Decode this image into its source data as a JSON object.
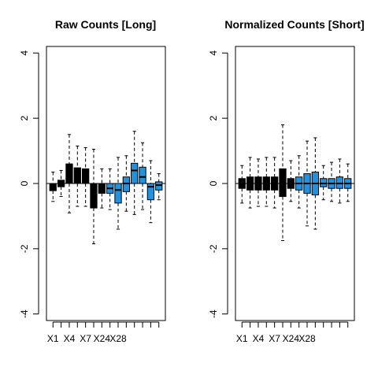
{
  "chart_data": [
    {
      "type": "box",
      "title": "Raw Counts [Long]",
      "ylim": [
        -4.2,
        4.2
      ],
      "y_ticks": [
        -4,
        -2,
        0,
        2,
        4
      ],
      "y_tick_labels": [
        "-4",
        "-2",
        "0",
        "2",
        "4"
      ],
      "x_tick_labels": [
        "X1",
        "X4",
        "X7",
        "X24",
        "X28"
      ],
      "x_tick_positions": [
        1,
        3,
        5,
        7,
        9
      ],
      "n_boxes": 14,
      "reference_line": 0,
      "colors": {
        "black_group": "#000000",
        "blue_group": "#1f93e0"
      },
      "boxes": [
        {
          "color": "black",
          "q1": -0.22,
          "median": -0.1,
          "q3": 0.0,
          "lower_whisker": -0.55,
          "upper_whisker": 0.35
        },
        {
          "color": "black",
          "q1": -0.1,
          "median": 0.0,
          "q3": 0.1,
          "lower_whisker": -0.4,
          "upper_whisker": 0.4
        },
        {
          "color": "black",
          "q1": 0.0,
          "median": 0.25,
          "q3": 0.6,
          "lower_whisker": -0.9,
          "upper_whisker": 1.5
        },
        {
          "color": "black",
          "q1": 0.0,
          "median": 0.2,
          "q3": 0.48,
          "lower_whisker": -0.7,
          "upper_whisker": 1.15
        },
        {
          "color": "black",
          "q1": 0.0,
          "median": 0.2,
          "q3": 0.45,
          "lower_whisker": -0.7,
          "upper_whisker": 1.1
        },
        {
          "color": "black",
          "q1": -0.75,
          "median": -0.25,
          "q3": 0.0,
          "lower_whisker": -1.85,
          "upper_whisker": 1.05
        },
        {
          "color": "black",
          "q1": -0.3,
          "median": -0.15,
          "q3": 0.0,
          "lower_whisker": -0.75,
          "upper_whisker": 0.45
        },
        {
          "color": "blue",
          "q1": -0.3,
          "median": -0.15,
          "q3": 0.0,
          "lower_whisker": -0.8,
          "upper_whisker": 0.45
        },
        {
          "color": "blue",
          "q1": -0.6,
          "median": -0.2,
          "q3": 0.0,
          "lower_whisker": -1.4,
          "upper_whisker": 0.8
        },
        {
          "color": "blue",
          "q1": -0.25,
          "median": 0.0,
          "q3": 0.2,
          "lower_whisker": -0.85,
          "upper_whisker": 0.85
        },
        {
          "color": "blue",
          "q1": 0.0,
          "median": 0.4,
          "q3": 0.62,
          "lower_whisker": -0.95,
          "upper_whisker": 1.6
        },
        {
          "color": "blue",
          "q1": 0.0,
          "median": 0.2,
          "q3": 0.5,
          "lower_whisker": -0.8,
          "upper_whisker": 1.25
        },
        {
          "color": "blue",
          "q1": -0.5,
          "median": -0.1,
          "q3": 0.0,
          "lower_whisker": -1.2,
          "upper_whisker": 0.7
        },
        {
          "color": "blue",
          "q1": -0.2,
          "median": -0.05,
          "q3": 0.05,
          "lower_whisker": -0.5,
          "upper_whisker": 0.3
        }
      ]
    },
    {
      "type": "box",
      "title": "Normalized Counts [Short]",
      "ylim": [
        -4.2,
        4.2
      ],
      "y_ticks": [
        -4,
        -2,
        0,
        2,
        4
      ],
      "y_tick_labels": [
        "-4",
        "-2",
        "0",
        "2",
        "4"
      ],
      "x_tick_labels": [
        "X1",
        "X4",
        "X7",
        "X24",
        "X28"
      ],
      "x_tick_positions": [
        1,
        3,
        5,
        7,
        9
      ],
      "n_boxes": 14,
      "reference_line": 0,
      "colors": {
        "black_group": "#000000",
        "blue_group": "#1f93e0"
      },
      "boxes": [
        {
          "color": "black",
          "q1": -0.15,
          "median": 0.0,
          "q3": 0.15,
          "lower_whisker": -0.6,
          "upper_whisker": 0.55
        },
        {
          "color": "black",
          "q1": -0.2,
          "median": 0.0,
          "q3": 0.2,
          "lower_whisker": -0.75,
          "upper_whisker": 0.8
        },
        {
          "color": "black",
          "q1": -0.2,
          "median": 0.0,
          "q3": 0.2,
          "lower_whisker": -0.7,
          "upper_whisker": 0.75
        },
        {
          "color": "black",
          "q1": -0.2,
          "median": 0.0,
          "q3": 0.2,
          "lower_whisker": -0.7,
          "upper_whisker": 0.8
        },
        {
          "color": "black",
          "q1": -0.2,
          "median": 0.0,
          "q3": 0.2,
          "lower_whisker": -0.75,
          "upper_whisker": 0.8
        },
        {
          "color": "black",
          "q1": -0.4,
          "median": 0.0,
          "q3": 0.45,
          "lower_whisker": -1.75,
          "upper_whisker": 1.8
        },
        {
          "color": "black",
          "q1": -0.15,
          "median": 0.0,
          "q3": 0.15,
          "lower_whisker": -0.55,
          "upper_whisker": 0.7
        },
        {
          "color": "blue",
          "q1": -0.2,
          "median": 0.0,
          "q3": 0.2,
          "lower_whisker": -0.75,
          "upper_whisker": 0.85
        },
        {
          "color": "blue",
          "q1": -0.3,
          "median": 0.0,
          "q3": 0.3,
          "lower_whisker": -1.3,
          "upper_whisker": 1.3
        },
        {
          "color": "blue",
          "q1": -0.35,
          "median": 0.0,
          "q3": 0.35,
          "lower_whisker": -1.4,
          "upper_whisker": 1.4
        },
        {
          "color": "blue",
          "q1": -0.1,
          "median": 0.0,
          "q3": 0.15,
          "lower_whisker": -0.5,
          "upper_whisker": 0.55
        },
        {
          "color": "blue",
          "q1": -0.15,
          "median": 0.0,
          "q3": 0.15,
          "lower_whisker": -0.55,
          "upper_whisker": 0.65
        },
        {
          "color": "blue",
          "q1": -0.15,
          "median": 0.0,
          "q3": 0.2,
          "lower_whisker": -0.6,
          "upper_whisker": 0.75
        },
        {
          "color": "blue",
          "q1": -0.15,
          "median": 0.0,
          "q3": 0.15,
          "lower_whisker": -0.55,
          "upper_whisker": 0.6
        }
      ]
    }
  ]
}
